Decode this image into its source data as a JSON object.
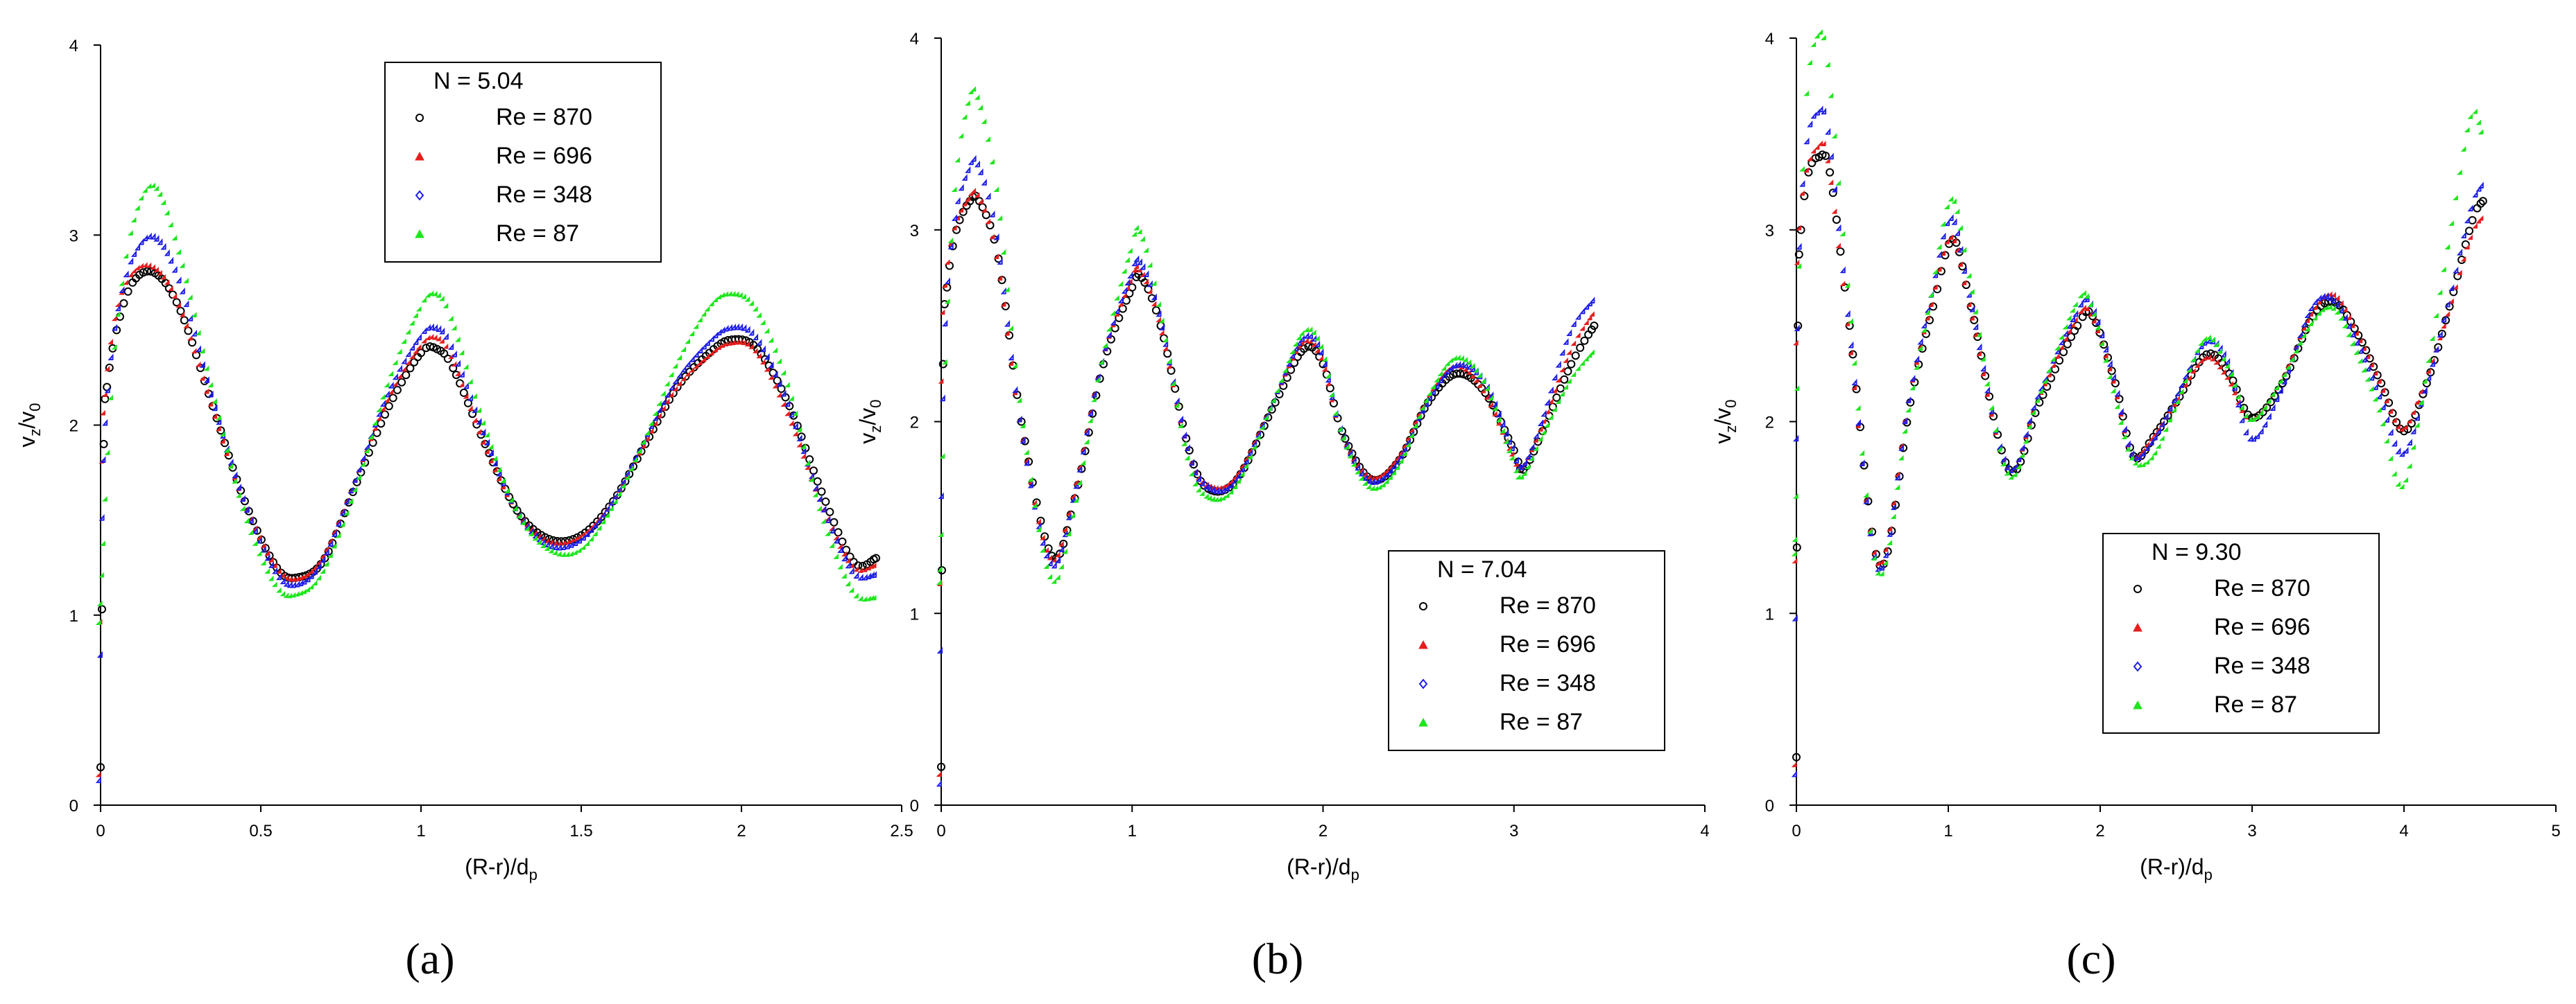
{
  "figure": {
    "captions": [
      "(a)",
      "(b)",
      "(c)"
    ]
  },
  "chart_data": [
    {
      "type": "scatter",
      "panel": "a",
      "caption_letter": "a",
      "legend_title": "N = 5.04",
      "legend_placement": "top-center",
      "xlabel": "(R-r)/d",
      "xlabel_sub": "p",
      "ylabel_parts": [
        "v",
        "z",
        "/v",
        "0"
      ],
      "xlim": [
        0,
        2.5
      ],
      "ylim": [
        0,
        4
      ],
      "xticks": [
        0,
        0.5,
        1,
        1.5,
        2,
        2.5
      ],
      "xtick_labels": [
        "0",
        "0.5",
        "1",
        "1.5",
        "2",
        "2.5"
      ],
      "yticks": [
        0,
        1,
        2,
        3,
        4
      ],
      "ytick_labels": [
        "0",
        "1",
        "2",
        "3",
        "4"
      ],
      "series": [
        {
          "name": "Re = 870",
          "color": "#000000",
          "marker": "circle",
          "x": [
            0.0,
            0.01,
            0.02,
            0.05,
            0.1,
            0.17,
            0.25,
            0.35,
            0.45,
            0.55,
            0.62,
            0.7,
            0.8,
            0.9,
            1.0,
            1.05,
            1.1,
            1.2,
            1.3,
            1.4,
            1.5,
            1.6,
            1.7,
            1.8,
            1.9,
            1.97,
            2.05,
            2.15,
            2.25,
            2.35,
            2.42
          ],
          "y": [
            0.2,
            1.9,
            2.2,
            2.5,
            2.75,
            2.8,
            2.6,
            2.1,
            1.6,
            1.25,
            1.2,
            1.3,
            1.7,
            2.1,
            2.38,
            2.4,
            2.3,
            1.9,
            1.55,
            1.4,
            1.42,
            1.6,
            1.9,
            2.2,
            2.38,
            2.45,
            2.4,
            2.1,
            1.65,
            1.28,
            1.3
          ]
        },
        {
          "name": "Re = 696",
          "color": "#e61e1e",
          "marker": "triangle",
          "x": [
            0.0,
            0.01,
            0.02,
            0.05,
            0.1,
            0.17,
            0.25,
            0.35,
            0.45,
            0.55,
            0.62,
            0.7,
            0.8,
            0.9,
            1.0,
            1.05,
            1.1,
            1.2,
            1.3,
            1.4,
            1.5,
            1.6,
            1.7,
            1.8,
            1.9,
            1.97,
            2.05,
            2.15,
            2.25,
            2.35,
            2.42
          ],
          "y": [
            0.15,
            1.8,
            2.15,
            2.55,
            2.78,
            2.82,
            2.62,
            2.1,
            1.6,
            1.25,
            1.18,
            1.3,
            1.7,
            2.12,
            2.4,
            2.45,
            2.35,
            1.9,
            1.55,
            1.38,
            1.4,
            1.58,
            1.88,
            2.18,
            2.35,
            2.42,
            2.38,
            2.05,
            1.6,
            1.25,
            1.25
          ]
        },
        {
          "name": "Re = 348",
          "color": "#1e1ee6",
          "marker": "diamond",
          "x": [
            0.0,
            0.01,
            0.02,
            0.05,
            0.1,
            0.17,
            0.25,
            0.35,
            0.45,
            0.55,
            0.62,
            0.7,
            0.8,
            0.9,
            1.0,
            1.05,
            1.1,
            1.2,
            1.3,
            1.4,
            1.5,
            1.6,
            1.7,
            1.8,
            1.9,
            1.97,
            2.05,
            2.15,
            2.25,
            2.35,
            2.42
          ],
          "y": [
            0.12,
            1.5,
            2.0,
            2.5,
            2.85,
            2.98,
            2.75,
            2.15,
            1.6,
            1.22,
            1.15,
            1.28,
            1.7,
            2.15,
            2.45,
            2.5,
            2.4,
            1.95,
            1.55,
            1.36,
            1.38,
            1.58,
            1.9,
            2.22,
            2.42,
            2.5,
            2.45,
            2.1,
            1.6,
            1.22,
            1.2
          ]
        },
        {
          "name": "Re = 87",
          "color": "#1ee61e",
          "marker": "triangle",
          "x": [
            0.0,
            0.01,
            0.02,
            0.05,
            0.1,
            0.17,
            0.25,
            0.35,
            0.45,
            0.55,
            0.62,
            0.7,
            0.8,
            0.9,
            1.0,
            1.05,
            1.1,
            1.2,
            1.3,
            1.4,
            1.5,
            1.6,
            1.7,
            1.8,
            1.9,
            1.97,
            2.05,
            2.15,
            2.25,
            2.35,
            2.42
          ],
          "y": [
            0.95,
            1.2,
            1.6,
            2.4,
            3.0,
            3.25,
            2.9,
            2.2,
            1.55,
            1.15,
            1.1,
            1.22,
            1.65,
            2.2,
            2.6,
            2.68,
            2.55,
            2.0,
            1.55,
            1.34,
            1.33,
            1.55,
            1.9,
            2.3,
            2.6,
            2.68,
            2.6,
            2.2,
            1.55,
            1.12,
            1.08
          ]
        }
      ]
    },
    {
      "type": "scatter",
      "panel": "b",
      "caption_letter": "b",
      "legend_title": "N = 7.04",
      "legend_placement": "bottom-right",
      "xlabel": "(R-r)/d",
      "xlabel_sub": "p",
      "ylabel_parts": [
        "v",
        "z",
        "/v",
        "0"
      ],
      "xlim": [
        0,
        4
      ],
      "ylim": [
        0,
        4
      ],
      "xticks": [
        0,
        1,
        2,
        3,
        4
      ],
      "xtick_labels": [
        "0",
        "1",
        "2",
        "3",
        "4"
      ],
      "yticks": [
        0,
        1,
        2,
        3,
        4
      ],
      "ytick_labels": [
        "0",
        "1",
        "2",
        "3",
        "4"
      ],
      "series": [
        {
          "name": "Re = 870",
          "color": "#000000",
          "marker": "circle",
          "x": [
            0.0,
            0.01,
            0.03,
            0.08,
            0.15,
            0.2,
            0.3,
            0.42,
            0.58,
            0.7,
            0.85,
            1.0,
            1.05,
            1.15,
            1.3,
            1.4,
            1.55,
            1.75,
            1.9,
            2.0,
            2.1,
            2.25,
            2.4,
            2.55,
            2.7,
            2.85,
            3.0,
            3.05,
            3.15,
            3.3,
            3.42
          ],
          "y": [
            0.2,
            2.3,
            2.7,
            3.0,
            3.15,
            3.15,
            2.85,
            2.0,
            1.3,
            1.6,
            2.3,
            2.7,
            2.75,
            2.5,
            1.85,
            1.65,
            1.7,
            2.1,
            2.38,
            2.3,
            1.95,
            1.7,
            1.8,
            2.1,
            2.25,
            2.15,
            1.85,
            1.75,
            1.95,
            2.3,
            2.5
          ]
        },
        {
          "name": "Re = 696",
          "color": "#e61e1e",
          "marker": "triangle",
          "x": [
            0.0,
            0.01,
            0.03,
            0.08,
            0.15,
            0.2,
            0.3,
            0.42,
            0.58,
            0.7,
            0.85,
            1.0,
            1.05,
            1.15,
            1.3,
            1.4,
            1.55,
            1.75,
            1.9,
            2.0,
            2.1,
            2.25,
            2.4,
            2.55,
            2.7,
            2.85,
            3.0,
            3.05,
            3.15,
            3.3,
            3.42
          ],
          "y": [
            0.15,
            2.2,
            2.7,
            3.0,
            3.15,
            3.17,
            2.85,
            2.0,
            1.28,
            1.6,
            2.3,
            2.72,
            2.78,
            2.52,
            1.85,
            1.66,
            1.7,
            2.1,
            2.4,
            2.32,
            1.95,
            1.7,
            1.8,
            2.1,
            2.28,
            2.15,
            1.82,
            1.75,
            1.95,
            2.35,
            2.55
          ]
        },
        {
          "name": "Re = 348",
          "color": "#1e1ee6",
          "marker": "diamond",
          "x": [
            0.0,
            0.01,
            0.03,
            0.08,
            0.15,
            0.2,
            0.3,
            0.42,
            0.58,
            0.7,
            0.85,
            1.0,
            1.05,
            1.15,
            1.3,
            1.4,
            1.55,
            1.75,
            1.9,
            2.0,
            2.1,
            2.25,
            2.4,
            2.55,
            2.7,
            2.85,
            3.0,
            3.05,
            3.15,
            3.3,
            3.42
          ],
          "y": [
            0.1,
            1.6,
            2.5,
            3.05,
            3.3,
            3.33,
            2.95,
            2.0,
            1.25,
            1.58,
            2.3,
            2.75,
            2.82,
            2.55,
            1.85,
            1.65,
            1.68,
            2.1,
            2.42,
            2.35,
            1.95,
            1.68,
            1.78,
            2.08,
            2.28,
            2.2,
            1.85,
            1.75,
            1.98,
            2.45,
            2.62
          ]
        },
        {
          "name": "Re = 87",
          "color": "#1ee61e",
          "marker": "triangle",
          "x": [
            0.0,
            0.01,
            0.03,
            0.08,
            0.15,
            0.2,
            0.3,
            0.42,
            0.58,
            0.7,
            0.85,
            1.0,
            1.05,
            1.15,
            1.3,
            1.4,
            1.55,
            1.75,
            1.9,
            2.0,
            2.1,
            2.25,
            2.4,
            2.55,
            2.7,
            2.85,
            3.0,
            3.05,
            3.15,
            3.3,
            3.42
          ],
          "y": [
            1.15,
            1.4,
            2.3,
            3.2,
            3.65,
            3.68,
            3.2,
            2.1,
            1.18,
            1.5,
            2.3,
            2.88,
            2.98,
            2.6,
            1.8,
            1.6,
            1.65,
            2.1,
            2.45,
            2.38,
            1.95,
            1.65,
            1.75,
            2.1,
            2.32,
            2.2,
            1.8,
            1.7,
            1.9,
            2.2,
            2.35
          ]
        }
      ]
    },
    {
      "type": "scatter",
      "panel": "c",
      "caption_letter": "c",
      "legend_title": "N = 9.30",
      "legend_placement": "bottom-center",
      "xlabel": "(R-r)/d",
      "xlabel_sub": "p",
      "ylabel_parts": [
        "v",
        "z",
        "/v",
        "0"
      ],
      "xlim": [
        0,
        5
      ],
      "ylim": [
        0,
        4
      ],
      "xticks": [
        0,
        1,
        2,
        3,
        4,
        5
      ],
      "xtick_labels": [
        "0",
        "1",
        "2",
        "3",
        "4",
        "5"
      ],
      "yticks": [
        0,
        1,
        2,
        3,
        4
      ],
      "ytick_labels": [
        "0",
        "1",
        "2",
        "3",
        "4"
      ],
      "series": [
        {
          "name": "Re = 870",
          "color": "#000000",
          "marker": "circle",
          "x": [
            0.0,
            0.01,
            0.03,
            0.08,
            0.15,
            0.22,
            0.35,
            0.55,
            0.75,
            0.9,
            1.03,
            1.15,
            1.4,
            1.6,
            1.85,
            1.95,
            2.1,
            2.22,
            2.35,
            2.5,
            2.7,
            2.85,
            3.0,
            3.2,
            3.4,
            3.55,
            3.7,
            3.85,
            4.0,
            4.15,
            4.3,
            4.45,
            4.52
          ],
          "y": [
            0.25,
            2.5,
            3.0,
            3.3,
            3.38,
            3.3,
            2.5,
            1.25,
            2.1,
            2.6,
            2.95,
            2.6,
            1.75,
            2.1,
            2.5,
            2.55,
            2.2,
            1.82,
            1.92,
            2.1,
            2.35,
            2.25,
            2.02,
            2.2,
            2.55,
            2.62,
            2.45,
            2.2,
            1.95,
            2.2,
            2.6,
            3.05,
            3.15
          ]
        },
        {
          "name": "Re = 696",
          "color": "#e61e1e",
          "marker": "triangle",
          "x": [
            0.0,
            0.01,
            0.03,
            0.08,
            0.15,
            0.22,
            0.35,
            0.55,
            0.75,
            0.9,
            1.03,
            1.15,
            1.4,
            1.6,
            1.85,
            1.95,
            2.1,
            2.22,
            2.35,
            2.5,
            2.7,
            2.85,
            3.0,
            3.2,
            3.4,
            3.55,
            3.7,
            3.85,
            4.0,
            4.15,
            4.3,
            4.45,
            4.52
          ],
          "y": [
            0.2,
            2.4,
            3.0,
            3.3,
            3.42,
            3.35,
            2.5,
            1.25,
            2.1,
            2.6,
            2.95,
            2.6,
            1.75,
            2.1,
            2.52,
            2.55,
            2.2,
            1.82,
            1.9,
            2.08,
            2.32,
            2.22,
            2.0,
            2.2,
            2.55,
            2.65,
            2.45,
            2.2,
            1.95,
            2.2,
            2.55,
            2.95,
            3.05
          ]
        },
        {
          "name": "Re = 348",
          "color": "#1e1ee6",
          "marker": "diamond",
          "x": [
            0.0,
            0.01,
            0.03,
            0.08,
            0.15,
            0.22,
            0.35,
            0.55,
            0.75,
            0.9,
            1.03,
            1.15,
            1.4,
            1.6,
            1.85,
            1.95,
            2.1,
            2.22,
            2.35,
            2.5,
            2.7,
            2.85,
            3.0,
            3.2,
            3.4,
            3.55,
            3.7,
            3.85,
            4.0,
            4.15,
            4.3,
            4.45,
            4.52
          ],
          "y": [
            0.15,
            1.9,
            2.9,
            3.45,
            3.6,
            3.5,
            2.55,
            1.22,
            2.1,
            2.65,
            3.05,
            2.65,
            1.75,
            2.12,
            2.55,
            2.6,
            2.22,
            1.82,
            1.88,
            2.1,
            2.4,
            2.3,
            1.9,
            2.15,
            2.58,
            2.62,
            2.4,
            2.12,
            1.82,
            2.15,
            2.6,
            3.1,
            3.22
          ]
        },
        {
          "name": "Re = 87",
          "color": "#1ee61e",
          "marker": "triangle",
          "x": [
            0.0,
            0.01,
            0.03,
            0.08,
            0.15,
            0.22,
            0.35,
            0.55,
            0.75,
            0.9,
            1.03,
            1.15,
            1.4,
            1.6,
            1.85,
            1.95,
            2.1,
            2.22,
            2.35,
            2.5,
            2.7,
            2.85,
            3.0,
            3.2,
            3.4,
            3.55,
            3.7,
            3.85,
            4.0,
            4.15,
            4.3,
            4.45,
            4.52
          ],
          "y": [
            1.3,
            1.6,
            2.8,
            3.7,
            4.0,
            3.85,
            2.7,
            1.2,
            2.05,
            2.65,
            3.15,
            2.75,
            1.72,
            2.1,
            2.6,
            2.6,
            2.15,
            1.8,
            1.8,
            2.05,
            2.42,
            2.28,
            2.0,
            2.2,
            2.5,
            2.58,
            2.35,
            2.05,
            1.65,
            2.2,
            2.9,
            3.58,
            3.5
          ]
        }
      ]
    }
  ]
}
